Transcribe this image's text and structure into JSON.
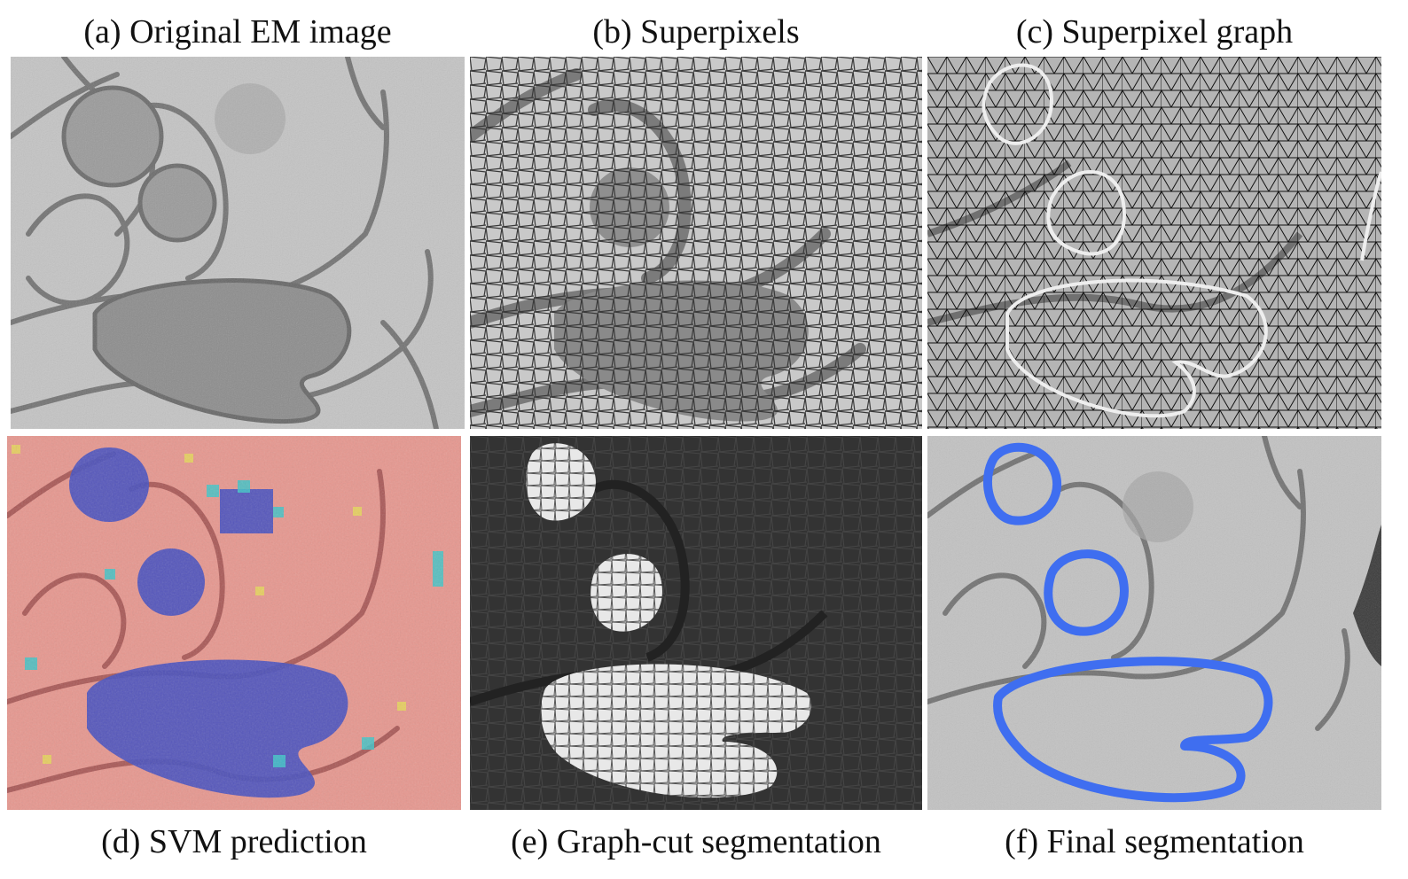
{
  "figure": {
    "panels": [
      {
        "id": "a",
        "caption": "(a) Original EM image"
      },
      {
        "id": "b",
        "caption": "(b) Superpixels"
      },
      {
        "id": "c",
        "caption": "(c) Superpixel graph"
      },
      {
        "id": "d",
        "caption": "(d) SVM prediction"
      },
      {
        "id": "e",
        "caption": "(e) Graph-cut segmentation"
      },
      {
        "id": "f",
        "caption": "(f) Final segmentation"
      }
    ]
  },
  "colors": {
    "em_background": "#bdbdbd",
    "membrane": "#6f6f6f",
    "mitochondria_fill": "#8a8a8a",
    "superpixel_edge": "#3a3a3a",
    "graph_edge": "#111111",
    "graph_highlight": "#eeeeee",
    "svm_background": "#e89a96",
    "svm_positive": "#4a58c4",
    "svm_uncertain": "#3fc4c8",
    "graphcut_background": "#333333",
    "graphcut_foreground": "#eaeaea",
    "final_outline": "#3f6ef0"
  }
}
